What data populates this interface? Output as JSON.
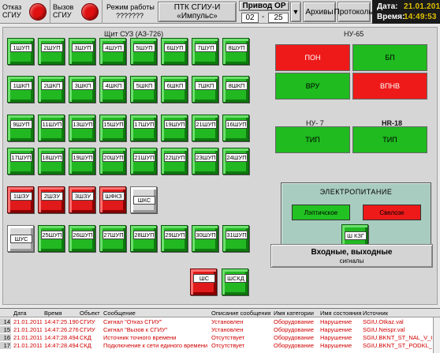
{
  "toolbar": {
    "fault_label": "Отказ\nСГИУ",
    "call_label": "Вызов\nСГИУ",
    "mode_label": "Режим работы",
    "mode_value": "???????",
    "ptk_title": "ПТК СГИУ-И",
    "ptk_subtitle": "«Импульс»",
    "drive_label": "Привод ОР",
    "drive_from": "02",
    "drive_sep": "-",
    "drive_to": "25",
    "drive_arrow": "▼",
    "archives_label": "Архивы",
    "protocols_label": "Протоколы",
    "date_label": "Дата:",
    "date_value": "21.01.2011",
    "time_label": "Время:",
    "time_value": "14:49:53",
    "lamp_color": "#e01010"
  },
  "panel": {
    "shield_title": "Щит СУЗ (АЗ-726)",
    "ny65_title": "НУ-65",
    "ny7_title": "НУ- 7",
    "nr18_title": "НR-18"
  },
  "tiles": {
    "row1": [
      "1ШУП",
      "2ШУП",
      "3ШУП",
      "4ШУП",
      "5ШУП",
      "6ШУП",
      "7ШУП",
      "8ШУП"
    ],
    "row2": [
      "1ШКП",
      "2ШКП",
      "3ШКП",
      "4ШКП",
      "5ШКП",
      "6ШКП",
      "7ШКП",
      "8ШКП"
    ],
    "row3": [
      "9ШУП",
      "11ШУП",
      "13ШУП",
      "15ШУП",
      "17ШУП",
      "19ШУП",
      "21ШУП",
      "16ШУП"
    ],
    "row4": [
      "17ШУП",
      "18ШУП",
      "19ШУП",
      "20ШУП",
      "21ШУП",
      "22ШУП",
      "23ШУП",
      "24ШУП"
    ],
    "row5": [
      "1ШЗУ",
      "2ШЗУ",
      "3ШЗУ",
      "ШФКЗ",
      "ШКС"
    ],
    "row6": [
      "ШУС",
      "25ШУП",
      "26ШУП",
      "27ШУП",
      "28ШУП",
      "29ШУП",
      "30ШУП",
      "31ШУП"
    ],
    "bottom": [
      "ШС",
      "ШСКД"
    ]
  },
  "indicators": {
    "pon": "ПОН",
    "bp": "БП",
    "vru": "ВРУ",
    "vpnv": "ВПНВ",
    "tip1": "ТИП",
    "tip2": "ТИП"
  },
  "power": {
    "title": "ЭЛЕКТРОПИТАНИЕ",
    "main_label": "Лэптичское",
    "reserve_label": "Свелозе",
    "kzg_label": "Ш КЗГ"
  },
  "io_button": {
    "line1": "Входные, выходные",
    "line2": "сигналы"
  },
  "log": {
    "headers": [
      "Дата",
      "Время",
      "Объект",
      "Сообщение",
      "Описание сообщения",
      "Имя категории",
      "Имя состояния",
      "Источник"
    ],
    "rows": [
      {
        "idx": "14",
        "date": "21.01.2011",
        "time": "14:47:25.190",
        "obj": "СГИУ",
        "msg": "Сигнал \"Отказ СГИУ\"",
        "desc": "Установлен",
        "cat": "Оборудование",
        "state": "Нарушение",
        "src": "SGIU.Otkaz.val"
      },
      {
        "idx": "15",
        "date": "21.01.2011",
        "time": "14:47:26.276",
        "obj": "СГИУ",
        "msg": "Сигнал \"Вызов к СГИУ\"",
        "desc": "Установлен",
        "cat": "Оборудование",
        "state": "Нарушение",
        "src": "SGIU.Neispr.val"
      },
      {
        "idx": "16",
        "date": "21.01.2011",
        "time": "14:47:28.494",
        "obj": "СКД",
        "msg": "Источник точного времени",
        "desc": "Отсутствует",
        "cat": "Оборудование",
        "state": "Нарушение",
        "src": "SGIU.BKNT_ST_NAL_V_C"
      },
      {
        "idx": "17",
        "date": "21.01.2011",
        "time": "14:47:28.494",
        "obj": "СКД",
        "msg": "Подключение к сети единого времени",
        "desc": "Отсутствует",
        "cat": "Оборудование",
        "state": "Нарушение",
        "src": "SGIU.BKNT_ST_PODKL_V"
      }
    ]
  }
}
